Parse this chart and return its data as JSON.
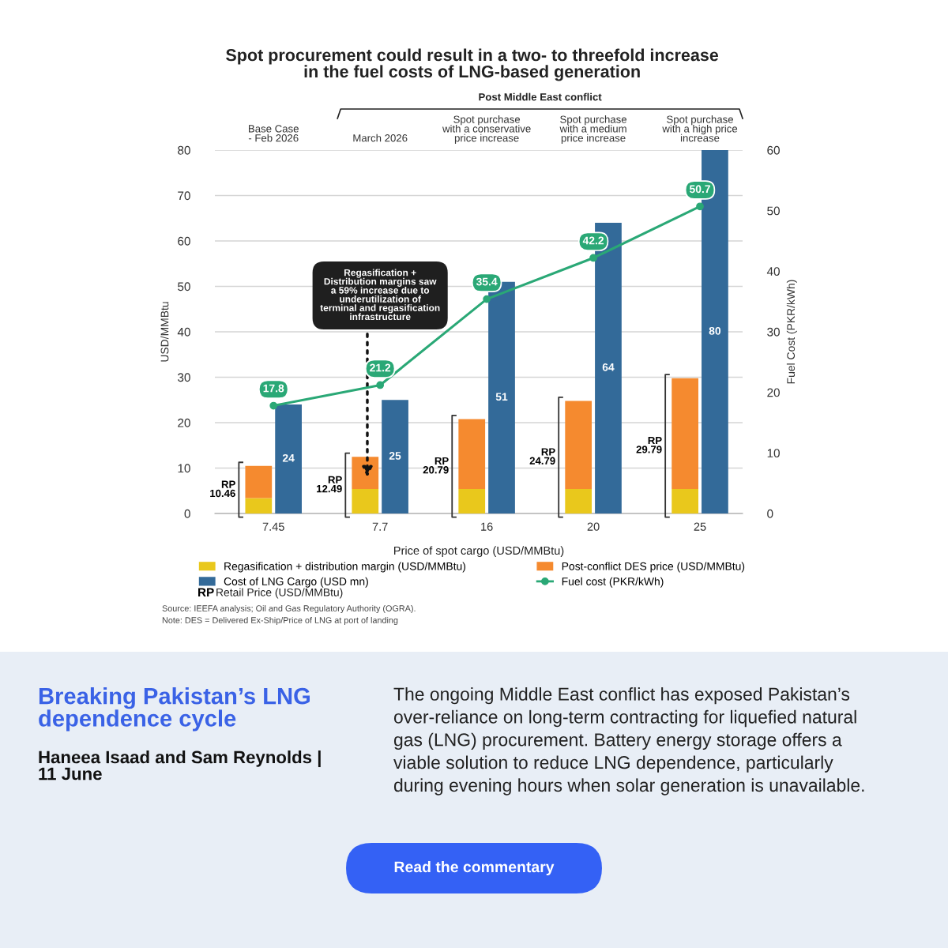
{
  "chart_data": [
    {
      "type": "bar",
      "title": "Spot procurement could result in a two- to threefold increase\nin the fuel costs of LNG-based generation",
      "xlabel": "Price of spot cargo (USD/MMBtu)",
      "ylabel": "USD/MMBtu",
      "y2label": "Fuel Cost (PKR/kWh)",
      "categories": [
        "7.45",
        "7.7",
        "16",
        "20",
        "25"
      ],
      "series": [
        {
          "name": "Regasification + distribution margin (USD/MMBtu)",
          "color": "#e9c81c",
          "values": [
            3.4,
            5.4,
            5.4,
            5.4,
            5.4
          ]
        },
        {
          "name": "Post-conflict DES price (USD/MMBtu)",
          "color": "#f58a2f",
          "values": [
            7.06,
            7.09,
            15.39,
            19.39,
            24.39
          ]
        },
        {
          "name": "Fuel cost (PKR/kWh)",
          "type": "line",
          "axis": "y2",
          "color": "#2aa876",
          "values": [
            17.8,
            21.2,
            35.4,
            42.2,
            50.7
          ],
          "value_labels": [
            "17.8",
            "21.2",
            "35.4",
            "42.2",
            "50.7"
          ]
        }
      ],
      "stacked": true,
      "totals": [
        "RP\n10.46",
        "RP\n12.49",
        "RP\n20.79",
        "RP\n24.79",
        "RP\n29.79"
      ],
      "ylim": [
        0,
        80
      ],
      "yticks": [
        0,
        10,
        20,
        30,
        40,
        50,
        60,
        70,
        80
      ],
      "y2lim": [
        0,
        60
      ],
      "y2ticks": [
        0,
        10,
        20,
        30,
        40,
        50,
        60
      ],
      "grid": "y",
      "legend": "bottom",
      "marker": "circle",
      "annotations": [
        "Base Case\n- Feb 2026",
        "March 2026",
        "Spot purchase\nwith a conservative\nprice increase",
        "Spot purchase\nwith a medium\nprice increase",
        "Spot purchase\nwith a high price\nincrease",
        "Post Middle East conflict",
        "Regasification +\nDistribution margins saw\na 59% increase due to\nunderutilization of\nterminal and regasification\ninfrastructure",
        "Source: IEEFA analysis; Oil and Gas Regulatory Authority (OGRA).",
        "Note: DES = Delivered Ex-Ship/Price of LNG at port of landing",
        "Breaking Pakistan’s LNG\ndependence cycle",
        "Haneea Isaad and Sam Reynolds |\n11 June",
        "The ongoing Middle East conflict has exposed Pakistan’s\nover-reliance on long-term contracting for liquefied natural\ngas (LNG) procurement. Battery energy storage offers a\nviable solution to reduce LNG dependence, particularly\nduring evening hours when solar generation is unavailable.",
        "Read the commentary",
        "RP",
        "Retail Price (USD/MMBtu)"
      ]
    },
    {
      "type": "bar",
      "categories": [
        "7.45",
        "7.7",
        "16",
        "20",
        "25"
      ],
      "series": [
        {
          "name": "Cost of LNG Cargo (USD mn)",
          "color": "#336a99",
          "values": [
            24,
            25,
            51,
            64,
            80
          ],
          "value_labels": [
            "24",
            "25",
            "51",
            "64",
            "80"
          ]
        }
      ],
      "ylim": [
        0,
        80
      ],
      "yticks": [
        0,
        10,
        20,
        30,
        40,
        50,
        60,
        70,
        80
      ],
      "legend": "bottom",
      "tick_labels": false
    }
  ]
}
